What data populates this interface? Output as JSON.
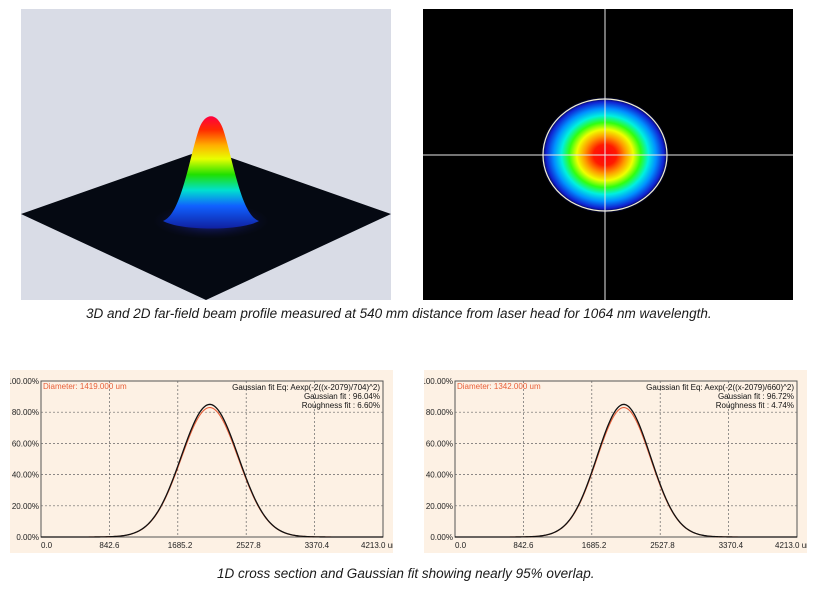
{
  "captions": {
    "top": "3D and 2D far-field beam profile measured at 540 mm distance from laser head for 1064 nm wavelength.",
    "bottom": "1D cross section and Gaussian fit showing nearly 95% overlap."
  },
  "colors": {
    "measured_curve": "#e8603a",
    "fit_curve": "#111111",
    "plot_background": "#fdf1e4",
    "diameter_text": "#e8603a"
  },
  "chart_data": [
    {
      "type": "line",
      "diameter_label": "Diameter: 1419.000 um",
      "fit_lines": [
        "Gaussian fit Eq: Aexp(-2((x-2079)/704)^2)",
        "Gaussian fit : 96.04%",
        "Roughness fit : 6.60%"
      ],
      "x_ticks": [
        "0.0",
        "842.6",
        "1685.2",
        "2527.8",
        "3370.4",
        "4213.0 um"
      ],
      "y_ticks": [
        "100.00%",
        "80.00%",
        "60.00%",
        "40.00%",
        "20.00%",
        "0.00%"
      ],
      "xlim": [
        0,
        4213
      ],
      "ylim": [
        0,
        100
      ],
      "grid": true,
      "series": [
        {
          "role": "measured",
          "center": 2079,
          "width": 704,
          "peak": 83
        },
        {
          "role": "fit",
          "center": 2079,
          "width": 704,
          "peak": 85
        }
      ]
    },
    {
      "type": "line",
      "diameter_label": "Diameter: 1342.000 um",
      "fit_lines": [
        "Gaussian fit Eq: Aexp(-2((x-2079)/660)^2)",
        "Gaussian fit : 96.72%",
        "Roughness fit : 4.74%"
      ],
      "x_ticks": [
        "0.0",
        "842.6",
        "1685.2",
        "2527.8",
        "3370.4",
        "4213.0 um"
      ],
      "y_ticks": [
        "100.00%",
        "80.00%",
        "60.00%",
        "40.00%",
        "20.00%",
        "0.00%"
      ],
      "xlim": [
        0,
        4213
      ],
      "ylim": [
        0,
        100
      ],
      "grid": true,
      "series": [
        {
          "role": "measured",
          "center": 2079,
          "width": 660,
          "peak": 83
        },
        {
          "role": "fit",
          "center": 2079,
          "width": 660,
          "peak": 85
        }
      ]
    }
  ]
}
